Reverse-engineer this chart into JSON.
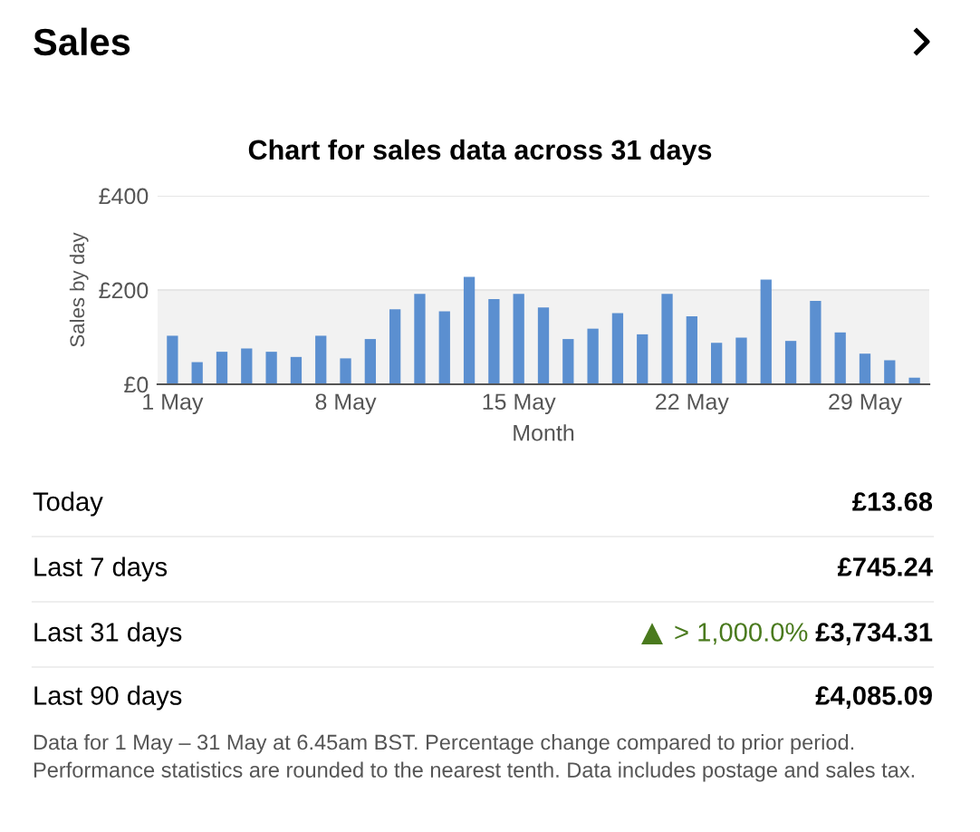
{
  "chart_data": [
    {
      "type": "bar",
      "title": "Sales",
      "subtitle": "Chart for sales data across 31 days",
      "xlabel": "Month",
      "ylabel": "Sales by day",
      "categories": [
        "1 May",
        null,
        null,
        null,
        null,
        null,
        null,
        "8 May",
        null,
        null,
        null,
        null,
        null,
        null,
        "15 May",
        null,
        null,
        null,
        null,
        null,
        null,
        "22 May",
        null,
        null,
        null,
        null,
        null,
        null,
        "29 May",
        null,
        null
      ],
      "values": [
        103,
        47,
        69,
        76,
        69,
        58,
        103,
        55,
        96,
        159,
        192,
        155,
        228,
        181,
        192,
        163,
        96,
        118,
        151,
        106,
        192,
        144,
        88,
        99,
        222,
        92,
        177,
        110,
        65,
        51,
        14
      ],
      "color": "#5b8fd0",
      "ylim": [
        0,
        400
      ],
      "yticks": [
        {
          "value": 0,
          "label": "£0"
        },
        {
          "value": 200,
          "label": "£200"
        },
        {
          "value": 400,
          "label": "£400"
        }
      ],
      "grid": "y",
      "bands": [
        {
          "axis": "y",
          "from": 0,
          "to": 200,
          "color": "#f2f2f2"
        }
      ]
    },
    {
      "type": "other",
      "annotations": [
        "Today",
        "£13.68",
        "Last 7 days",
        "£745.24",
        "Last 31 days",
        "> 1,000.0%",
        "£3,734.31",
        "Last 90 days",
        "£4,085.09",
        "Data for 1 May – 31 May at 6.45am BST. Percentage change compared to prior period. Performance statistics are rounded to the nearest tenth. Data includes postage and sales tax."
      ]
    }
  ]
}
